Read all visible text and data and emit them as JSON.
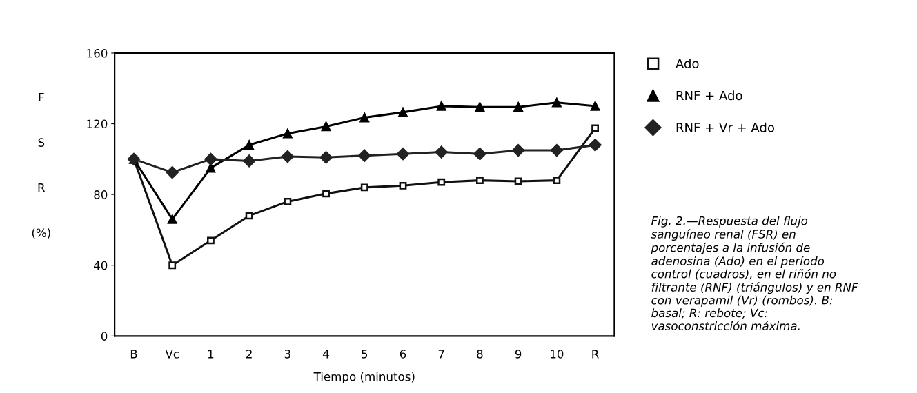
{
  "chart_data": {
    "type": "line",
    "xlabel": "Tiempo (minutos)",
    "ylabel": "F S R (%)",
    "categories": [
      "B",
      "Vc",
      "1",
      "2",
      "3",
      "4",
      "5",
      "6",
      "7",
      "8",
      "9",
      "10",
      "R"
    ],
    "ylim": [
      0,
      160
    ],
    "yticks": [
      0,
      40,
      80,
      120,
      160
    ],
    "grid": false,
    "legend": "right",
    "line_style": "solid",
    "series": [
      {
        "name": "Ado",
        "color": "#111111",
        "marker": "square",
        "values": [
          100,
          40,
          54,
          68,
          76,
          80.5,
          84,
          85,
          87,
          88,
          87.5,
          88,
          117.5
        ]
      },
      {
        "name": "RNF + Ado",
        "color": "#000000",
        "marker": "triangle",
        "values": [
          100,
          66,
          95,
          108,
          114.5,
          118.5,
          123.5,
          126.5,
          130,
          129.5,
          129.5,
          132,
          130
        ]
      },
      {
        "name": "RNF + Vr + Ado",
        "color": "#222222",
        "marker": "diamond",
        "values": [
          100,
          92.5,
          100,
          99,
          101.5,
          101,
          102,
          103,
          104,
          103,
          105,
          105,
          108
        ]
      }
    ],
    "annotations": [
      "Fig. 2.—Respuesta del flujo sanguíneo renal (FSR) en porcentajes a la infusión de adenosina (Ado) en el período control (cuadros), en el riñón no filtrante (RNF) (triángulos) y en RNF con verapamil (Vr) (rombos). B: basal; R: rebote; Vc: vasoconstricción máxima."
    ]
  }
}
